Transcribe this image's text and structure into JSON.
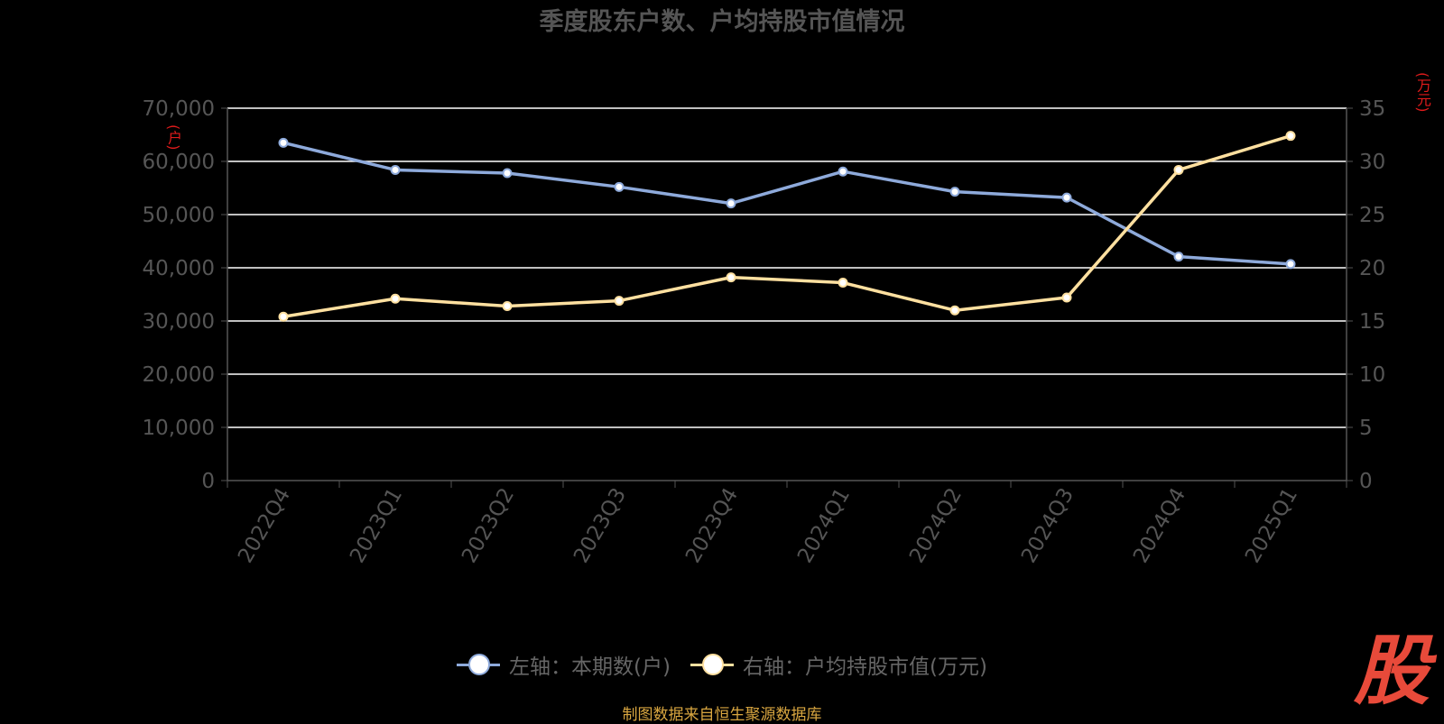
{
  "title": "季度股东户数、户均持股市值情况",
  "source": "制图数据来自恒生聚源数据库",
  "logo_text": "股",
  "colors": {
    "left_series": "#8eaadb",
    "right_series": "#ffe0a0",
    "grid": "#ffffff",
    "axis_text": "#555555",
    "unit": "#e01b1b"
  },
  "chart_data": {
    "type": "line",
    "title": "季度股东户数、户均持股市值情况",
    "categories": [
      "2022Q4",
      "2023Q1",
      "2023Q2",
      "2023Q3",
      "2023Q4",
      "2024Q1",
      "2024Q2",
      "2024Q3",
      "2024Q4",
      "2025Q1"
    ],
    "left_axis": {
      "unit": "(户)",
      "ylim": [
        0,
        70000
      ],
      "ticks": [
        "0",
        "10,000",
        "20,000",
        "30,000",
        "40,000",
        "50,000",
        "60,000",
        "70,000"
      ]
    },
    "right_axis": {
      "unit": "(万元)",
      "ylim": [
        0,
        35
      ],
      "ticks": [
        "0",
        "5",
        "10",
        "15",
        "20",
        "25",
        "30",
        "35"
      ]
    },
    "series": [
      {
        "name": "左轴：本期数(户)",
        "axis": "left",
        "color": "#8eaadb",
        "values": [
          63500,
          58400,
          57800,
          55200,
          52100,
          58100,
          54300,
          53200,
          42100,
          40700
        ]
      },
      {
        "name": "右轴：户均持股市值(万元)",
        "axis": "right",
        "color": "#ffe0a0",
        "values": [
          15.4,
          17.1,
          16.4,
          16.9,
          19.1,
          18.6,
          16.0,
          17.2,
          29.2,
          32.4
        ]
      }
    ],
    "grid": true,
    "legend_position": "bottom-center"
  }
}
